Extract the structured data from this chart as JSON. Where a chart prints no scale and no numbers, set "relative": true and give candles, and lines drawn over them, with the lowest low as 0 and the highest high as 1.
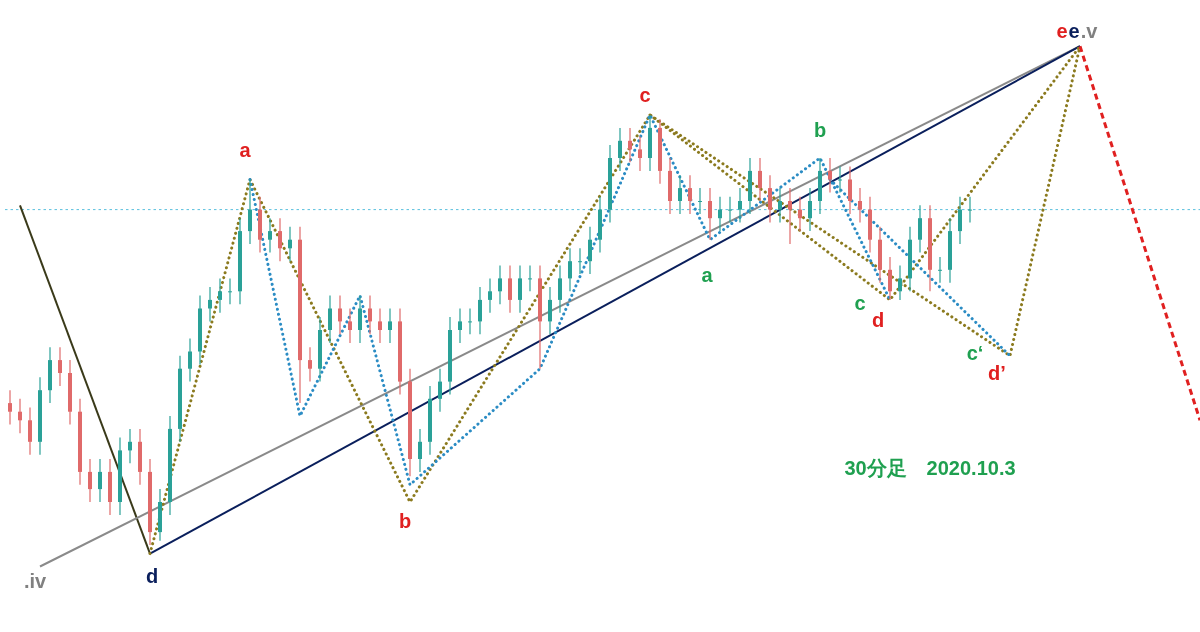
{
  "chart_data": {
    "type": "candlestick",
    "relative": true,
    "categories": [
      null,
      null,
      null,
      null,
      null,
      null,
      null,
      null,
      null,
      null,
      null,
      null,
      null,
      null,
      null,
      null,
      null,
      null,
      null,
      null,
      null,
      null,
      null,
      null,
      null,
      null,
      null,
      null,
      null,
      null,
      null,
      null,
      null,
      null,
      null,
      null,
      null,
      null,
      null,
      null,
      null,
      null,
      null,
      null,
      null,
      null,
      null,
      null,
      null,
      null,
      null,
      null,
      null,
      null,
      null,
      null,
      null,
      null,
      null,
      null,
      null,
      null,
      null,
      null,
      null,
      null,
      null,
      null,
      null,
      null,
      null,
      null,
      null,
      null,
      null,
      null,
      null,
      null,
      null,
      null,
      null,
      null,
      null,
      null,
      null,
      null,
      null,
      null,
      null,
      null,
      null,
      null,
      null,
      null,
      null,
      null,
      null,
      null,
      null,
      null,
      null,
      null,
      null,
      null,
      null,
      null,
      null,
      null,
      null,
      null,
      null,
      null,
      null,
      null,
      null,
      null,
      null,
      null,
      null,
      null
    ],
    "ohlc": [
      [
        0.33,
        0.36,
        0.28,
        0.31
      ],
      [
        0.31,
        0.34,
        0.26,
        0.29
      ],
      [
        0.29,
        0.32,
        0.21,
        0.24
      ],
      [
        0.24,
        0.39,
        0.21,
        0.36
      ],
      [
        0.36,
        0.46,
        0.33,
        0.43
      ],
      [
        0.43,
        0.46,
        0.37,
        0.4
      ],
      [
        0.4,
        0.43,
        0.28,
        0.31
      ],
      [
        0.31,
        0.34,
        0.14,
        0.17
      ],
      [
        0.17,
        0.2,
        0.1,
        0.13
      ],
      [
        0.13,
        0.2,
        0.1,
        0.17
      ],
      [
        0.17,
        0.2,
        0.07,
        0.1
      ],
      [
        0.1,
        0.25,
        0.07,
        0.22
      ],
      [
        0.22,
        0.27,
        0.19,
        0.24
      ],
      [
        0.24,
        0.27,
        0.14,
        0.17
      ],
      [
        0.17,
        0.2,
        0.0,
        0.03
      ],
      [
        0.03,
        0.13,
        0.01,
        0.1
      ],
      [
        0.1,
        0.3,
        0.07,
        0.27
      ],
      [
        0.27,
        0.44,
        0.24,
        0.41
      ],
      [
        0.41,
        0.48,
        0.38,
        0.45
      ],
      [
        0.45,
        0.58,
        0.42,
        0.55
      ],
      [
        0.55,
        0.6,
        0.52,
        0.57
      ],
      [
        0.57,
        0.62,
        0.54,
        0.59
      ],
      [
        0.59,
        0.62,
        0.56,
        0.59
      ],
      [
        0.59,
        0.76,
        0.56,
        0.73
      ],
      [
        0.73,
        0.85,
        0.7,
        0.78
      ],
      [
        0.78,
        0.81,
        0.68,
        0.71
      ],
      [
        0.71,
        0.76,
        0.68,
        0.73
      ],
      [
        0.73,
        0.76,
        0.66,
        0.69
      ],
      [
        0.69,
        0.74,
        0.66,
        0.71
      ],
      [
        0.71,
        0.74,
        0.33,
        0.43
      ],
      [
        0.43,
        0.46,
        0.38,
        0.41
      ],
      [
        0.41,
        0.53,
        0.38,
        0.5
      ],
      [
        0.5,
        0.58,
        0.47,
        0.55
      ],
      [
        0.55,
        0.58,
        0.49,
        0.52
      ],
      [
        0.52,
        0.55,
        0.47,
        0.5
      ],
      [
        0.5,
        0.58,
        0.47,
        0.55
      ],
      [
        0.55,
        0.58,
        0.49,
        0.52
      ],
      [
        0.52,
        0.55,
        0.47,
        0.5
      ],
      [
        0.5,
        0.55,
        0.47,
        0.52
      ],
      [
        0.52,
        0.55,
        0.35,
        0.38
      ],
      [
        0.38,
        0.41,
        0.16,
        0.2
      ],
      [
        0.2,
        0.27,
        0.17,
        0.24
      ],
      [
        0.24,
        0.37,
        0.21,
        0.34
      ],
      [
        0.34,
        0.41,
        0.31,
        0.38
      ],
      [
        0.38,
        0.53,
        0.35,
        0.5
      ],
      [
        0.5,
        0.55,
        0.47,
        0.52
      ],
      [
        0.52,
        0.55,
        0.49,
        0.52
      ],
      [
        0.52,
        0.6,
        0.49,
        0.57
      ],
      [
        0.57,
        0.62,
        0.54,
        0.59
      ],
      [
        0.59,
        0.65,
        0.56,
        0.62
      ],
      [
        0.62,
        0.65,
        0.54,
        0.57
      ],
      [
        0.57,
        0.65,
        0.54,
        0.62
      ],
      [
        0.62,
        0.65,
        0.59,
        0.62
      ],
      [
        0.62,
        0.65,
        0.41,
        0.52
      ],
      [
        0.52,
        0.6,
        0.49,
        0.57
      ],
      [
        0.57,
        0.65,
        0.54,
        0.62
      ],
      [
        0.62,
        0.69,
        0.59,
        0.66
      ],
      [
        0.66,
        0.69,
        0.63,
        0.66
      ],
      [
        0.66,
        0.74,
        0.63,
        0.71
      ],
      [
        0.71,
        0.81,
        0.68,
        0.78
      ],
      [
        0.78,
        0.93,
        0.75,
        0.9
      ],
      [
        0.9,
        0.97,
        0.87,
        0.94
      ],
      [
        0.94,
        0.97,
        0.89,
        0.92
      ],
      [
        0.92,
        0.95,
        0.87,
        0.9
      ],
      [
        0.9,
        1.0,
        0.87,
        0.97
      ],
      [
        0.97,
        0.99,
        0.84,
        0.87
      ],
      [
        0.87,
        0.9,
        0.77,
        0.8
      ],
      [
        0.8,
        0.86,
        0.77,
        0.83
      ],
      [
        0.83,
        0.86,
        0.77,
        0.8
      ],
      [
        0.8,
        0.83,
        0.77,
        0.8
      ],
      [
        0.8,
        0.83,
        0.71,
        0.76
      ],
      [
        0.76,
        0.81,
        0.73,
        0.78
      ],
      [
        0.78,
        0.81,
        0.75,
        0.78
      ],
      [
        0.78,
        0.83,
        0.75,
        0.8
      ],
      [
        0.8,
        0.9,
        0.77,
        0.87
      ],
      [
        0.87,
        0.9,
        0.8,
        0.83
      ],
      [
        0.83,
        0.86,
        0.75,
        0.78
      ],
      [
        0.78,
        0.83,
        0.75,
        0.8
      ],
      [
        0.8,
        0.83,
        0.7,
        0.78
      ],
      [
        0.78,
        0.81,
        0.73,
        0.76
      ],
      [
        0.76,
        0.83,
        0.73,
        0.8
      ],
      [
        0.8,
        0.9,
        0.77,
        0.87
      ],
      [
        0.87,
        0.9,
        0.82,
        0.85
      ],
      [
        0.85,
        0.88,
        0.82,
        0.85
      ],
      [
        0.85,
        0.88,
        0.77,
        0.8
      ],
      [
        0.8,
        0.83,
        0.75,
        0.78
      ],
      [
        0.78,
        0.81,
        0.68,
        0.71
      ],
      [
        0.71,
        0.74,
        0.61,
        0.64
      ],
      [
        0.64,
        0.67,
        0.57,
        0.59
      ],
      [
        0.59,
        0.65,
        0.57,
        0.62
      ],
      [
        0.62,
        0.74,
        0.59,
        0.71
      ],
      [
        0.71,
        0.79,
        0.68,
        0.76
      ],
      [
        0.76,
        0.79,
        0.59,
        0.64
      ],
      [
        0.64,
        0.67,
        0.61,
        0.64
      ],
      [
        0.64,
        0.76,
        0.61,
        0.73
      ],
      [
        0.73,
        0.81,
        0.7,
        0.78
      ],
      [
        0.78,
        0.81,
        0.75,
        0.78
      ],
      null,
      null,
      null,
      null,
      null,
      null,
      null,
      null,
      null,
      null,
      null,
      null,
      null,
      null,
      null,
      null,
      null,
      null,
      null,
      null,
      null,
      null,
      null
    ],
    "series": [
      {
        "type": "line",
        "color": "#3a3a1a",
        "line_style": "solid",
        "values": [
          null,
          0.79,
          null,
          null,
          null,
          null,
          null,
          null,
          null,
          null,
          null,
          null,
          null,
          null,
          -0.02,
          null,
          null,
          null,
          null,
          null,
          null,
          null,
          null,
          null,
          null,
          null,
          null,
          null,
          null,
          null,
          null,
          null,
          null,
          null,
          null,
          null,
          null,
          null,
          null,
          null,
          null,
          null,
          null,
          null,
          null,
          null,
          null,
          null,
          null,
          null,
          null,
          null,
          null,
          null,
          null,
          null,
          null,
          null,
          null,
          null,
          null,
          null,
          null,
          null,
          null,
          null,
          null,
          null,
          null,
          null,
          null,
          null,
          null,
          null,
          null,
          null,
          null,
          null,
          null,
          null,
          null,
          null,
          null,
          null,
          null,
          null,
          null,
          null,
          null,
          null,
          null,
          null,
          null,
          null,
          null,
          null,
          null,
          null,
          null,
          null,
          null,
          null,
          null,
          null,
          null,
          null,
          null,
          null,
          null,
          null,
          null,
          null,
          null,
          null,
          null,
          null,
          null,
          null,
          null,
          null
        ]
      },
      {
        "type": "line",
        "color": "#8a8a8a",
        "line_style": "solid",
        "values": [
          null,
          null,
          null,
          -0.05,
          null,
          null,
          null,
          null,
          null,
          null,
          null,
          null,
          null,
          null,
          null,
          null,
          null,
          null,
          null,
          null,
          null,
          null,
          null,
          null,
          null,
          null,
          null,
          null,
          null,
          null,
          null,
          null,
          null,
          null,
          null,
          null,
          null,
          null,
          null,
          null,
          null,
          null,
          null,
          null,
          null,
          null,
          null,
          null,
          null,
          null,
          null,
          null,
          null,
          null,
          null,
          null,
          null,
          null,
          null,
          null,
          null,
          null,
          null,
          null,
          null,
          null,
          null,
          null,
          null,
          null,
          null,
          null,
          null,
          null,
          null,
          null,
          null,
          null,
          null,
          null,
          null,
          null,
          null,
          null,
          null,
          null,
          null,
          null,
          null,
          null,
          null,
          null,
          null,
          null,
          null,
          null,
          null,
          null,
          null,
          null,
          null,
          null,
          null,
          null,
          null,
          null,
          null,
          1.16,
          null,
          null,
          null,
          null,
          null,
          null,
          null,
          null,
          null,
          null,
          null,
          null
        ]
      },
      {
        "type": "line",
        "color": "#0a1f5c",
        "line_style": "solid",
        "values": [
          null,
          null,
          null,
          null,
          null,
          null,
          null,
          null,
          null,
          null,
          null,
          null,
          null,
          null,
          -0.02,
          null,
          null,
          null,
          null,
          null,
          null,
          null,
          null,
          null,
          null,
          null,
          null,
          null,
          null,
          null,
          null,
          null,
          null,
          null,
          null,
          null,
          null,
          null,
          null,
          null,
          null,
          null,
          null,
          null,
          null,
          null,
          null,
          null,
          null,
          null,
          null,
          null,
          null,
          null,
          null,
          null,
          null,
          null,
          null,
          null,
          null,
          null,
          null,
          null,
          null,
          null,
          null,
          null,
          null,
          null,
          null,
          null,
          null,
          null,
          null,
          null,
          null,
          null,
          null,
          null,
          null,
          null,
          null,
          null,
          null,
          null,
          null,
          null,
          null,
          null,
          null,
          null,
          null,
          null,
          null,
          null,
          null,
          null,
          null,
          null,
          null,
          null,
          null,
          null,
          null,
          null,
          null,
          1.16,
          null,
          null,
          null,
          null,
          null,
          null,
          null,
          null,
          null,
          null,
          null,
          null
        ]
      },
      {
        "type": "line",
        "color": "#8b7a1e",
        "line_style": "dotted",
        "values": [
          null,
          null,
          null,
          null,
          null,
          null,
          null,
          null,
          null,
          null,
          null,
          null,
          null,
          null,
          -0.02,
          null,
          null,
          null,
          null,
          null,
          null,
          null,
          null,
          null,
          0.85,
          null,
          null,
          null,
          null,
          null,
          null,
          null,
          null,
          null,
          null,
          null,
          null,
          null,
          null,
          null,
          0.1,
          null,
          null,
          null,
          null,
          null,
          null,
          null,
          null,
          null,
          null,
          null,
          null,
          null,
          null,
          null,
          null,
          null,
          null,
          null,
          null,
          null,
          null,
          null,
          1.0,
          null,
          null,
          null,
          null,
          null,
          null,
          null,
          null,
          null,
          null,
          null,
          null,
          null,
          null,
          null,
          null,
          null,
          null,
          null,
          null,
          null,
          null,
          null,
          null,
          null,
          null,
          null,
          null,
          null,
          null,
          null,
          null,
          null,
          null,
          null,
          0.44,
          null,
          null,
          null,
          null,
          null,
          null,
          1.16,
          null,
          null,
          null,
          null,
          null,
          null,
          null,
          null,
          null,
          null,
          null,
          null
        ]
      },
      {
        "type": "line",
        "color": "#8b7a1e",
        "line_style": "dotted",
        "values": [
          null,
          null,
          null,
          null,
          null,
          null,
          null,
          null,
          null,
          null,
          null,
          null,
          null,
          null,
          null,
          null,
          null,
          null,
          null,
          null,
          null,
          null,
          null,
          null,
          null,
          null,
          null,
          null,
          null,
          null,
          null,
          null,
          null,
          null,
          null,
          null,
          null,
          null,
          null,
          null,
          null,
          null,
          null,
          null,
          null,
          null,
          null,
          null,
          null,
          null,
          null,
          null,
          null,
          null,
          null,
          null,
          null,
          null,
          null,
          null,
          null,
          null,
          null,
          null,
          1.0,
          null,
          null,
          null,
          null,
          null,
          null,
          null,
          null,
          null,
          null,
          null,
          null,
          null,
          null,
          null,
          null,
          null,
          null,
          null,
          null,
          null,
          null,
          null,
          0.57,
          null,
          null,
          null,
          null,
          null,
          null,
          null,
          null,
          null,
          null,
          null,
          null,
          null,
          null,
          null,
          null,
          null,
          null,
          1.16,
          null,
          null,
          null,
          null,
          null,
          null,
          null,
          null,
          null,
          null,
          null,
          null
        ]
      },
      {
        "type": "line",
        "color": "#2b8cc4",
        "line_style": "dotted",
        "values": [
          null,
          null,
          null,
          null,
          null,
          null,
          null,
          null,
          null,
          null,
          null,
          null,
          null,
          null,
          null,
          null,
          null,
          null,
          null,
          null,
          null,
          null,
          null,
          null,
          0.85,
          null,
          null,
          null,
          null,
          0.3,
          null,
          null,
          null,
          null,
          null,
          0.58,
          null,
          null,
          null,
          null,
          0.14,
          null,
          null,
          null,
          null,
          null,
          null,
          null,
          null,
          null,
          null,
          null,
          null,
          0.41,
          null,
          null,
          null,
          null,
          null,
          null,
          null,
          null,
          null,
          null,
          1.0,
          null,
          null,
          null,
          null,
          null,
          0.71,
          null,
          null,
          null,
          null,
          null,
          null,
          null,
          null,
          null,
          null,
          0.9,
          null,
          null,
          null,
          null,
          null,
          null,
          0.57,
          null,
          null,
          null,
          null,
          null,
          null,
          null,
          null,
          null,
          null,
          null,
          null,
          null,
          null,
          null,
          null,
          null,
          null,
          null,
          null,
          null,
          null,
          null,
          null,
          null,
          null,
          null,
          null,
          null,
          null,
          null
        ]
      },
      {
        "type": "line",
        "color": "#2b8cc4",
        "line_style": "dotted",
        "values": [
          null,
          null,
          null,
          null,
          null,
          null,
          null,
          null,
          null,
          null,
          null,
          null,
          null,
          null,
          null,
          null,
          null,
          null,
          null,
          null,
          null,
          null,
          null,
          null,
          null,
          null,
          null,
          null,
          null,
          null,
          null,
          null,
          null,
          null,
          null,
          null,
          null,
          null,
          null,
          null,
          null,
          null,
          null,
          null,
          null,
          null,
          null,
          null,
          null,
          null,
          null,
          null,
          null,
          null,
          null,
          null,
          null,
          null,
          null,
          null,
          null,
          null,
          null,
          null,
          null,
          null,
          null,
          null,
          null,
          null,
          null,
          null,
          null,
          null,
          null,
          null,
          null,
          null,
          null,
          null,
          null,
          null,
          0.85,
          null,
          null,
          null,
          null,
          null,
          null,
          null,
          null,
          null,
          null,
          null,
          null,
          null,
          null,
          null,
          null,
          null,
          0.44,
          null,
          null,
          null,
          null,
          null,
          null,
          null,
          null,
          null,
          null,
          null,
          null,
          null,
          null,
          null,
          null,
          null,
          null,
          null
        ]
      },
      {
        "type": "line",
        "color": "#e02020",
        "line_style": "dashed",
        "values": [
          null,
          null,
          null,
          null,
          null,
          null,
          null,
          null,
          null,
          null,
          null,
          null,
          null,
          null,
          null,
          null,
          null,
          null,
          null,
          null,
          null,
          null,
          null,
          null,
          null,
          null,
          null,
          null,
          null,
          null,
          null,
          null,
          null,
          null,
          null,
          null,
          null,
          null,
          null,
          null,
          null,
          null,
          null,
          null,
          null,
          null,
          null,
          null,
          null,
          null,
          null,
          null,
          null,
          null,
          null,
          null,
          null,
          null,
          null,
          null,
          null,
          null,
          null,
          null,
          null,
          null,
          null,
          null,
          null,
          null,
          null,
          null,
          null,
          null,
          null,
          null,
          null,
          null,
          null,
          null,
          null,
          null,
          null,
          null,
          null,
          null,
          null,
          null,
          null,
          null,
          null,
          null,
          null,
          null,
          null,
          null,
          null,
          null,
          null,
          null,
          null,
          null,
          null,
          null,
          null,
          null,
          null,
          1.16,
          null,
          null,
          null,
          null,
          null,
          null,
          null,
          null,
          null,
          null,
          null,
          0.29
        ]
      }
    ],
    "ref_lines": [
      {
        "axis": "y",
        "value": 0.78,
        "color": "#5bc0de",
        "line_style": "dotted"
      }
    ],
    "annotations": [
      ".iv",
      "d",
      "a",
      "b",
      "c",
      "a",
      "b",
      "c",
      "d",
      "c‘",
      "d’",
      "e",
      "e",
      ".v",
      "30分足　2020.10.3"
    ]
  }
}
